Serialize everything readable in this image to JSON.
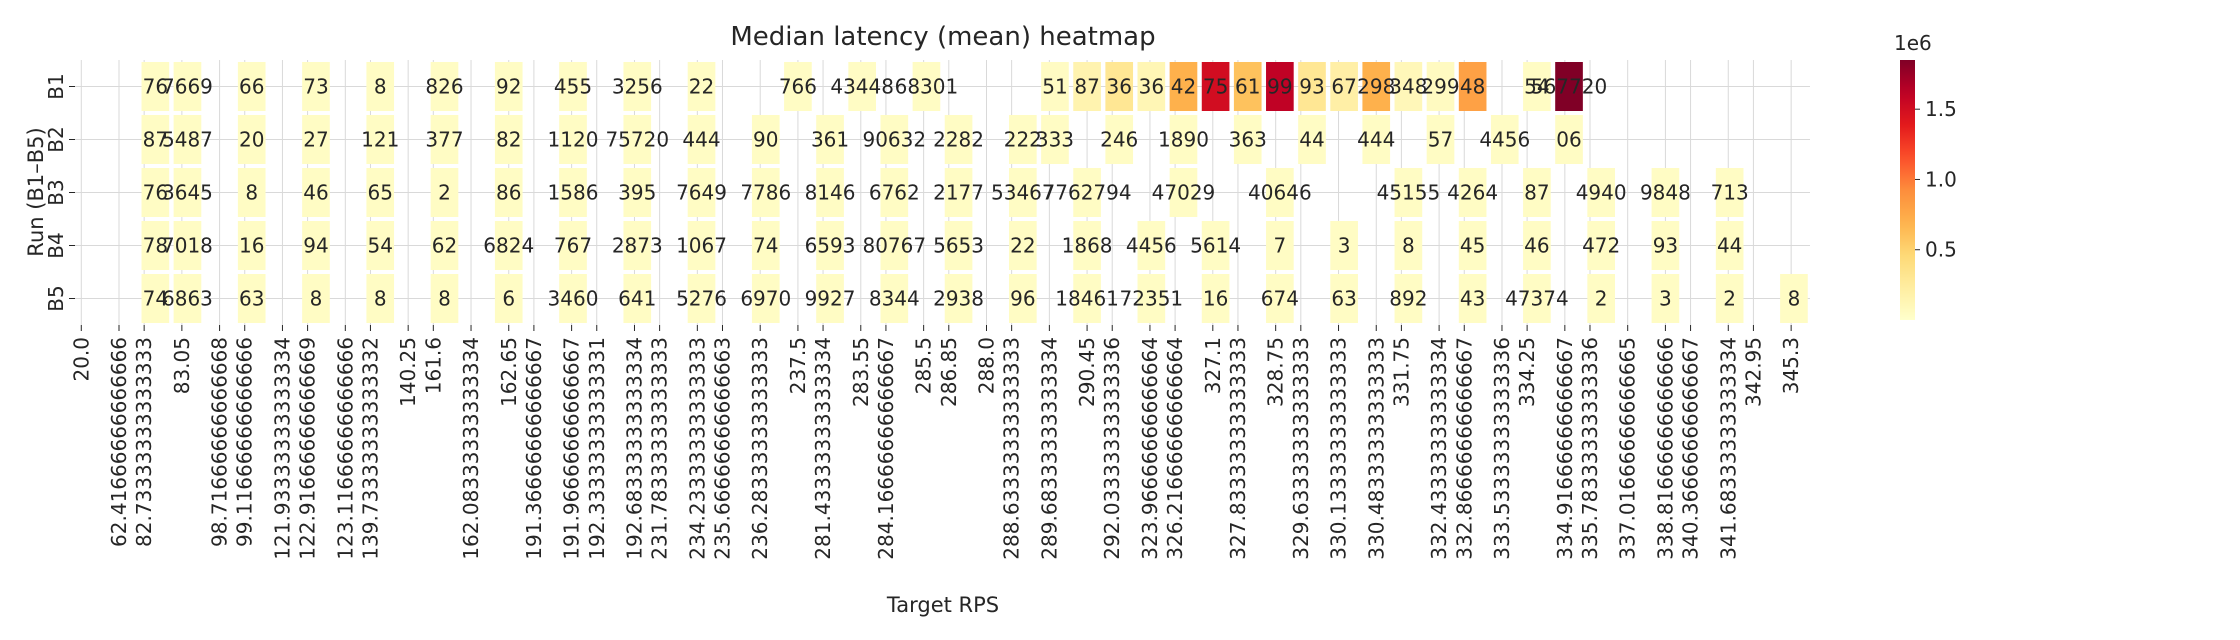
{
  "chart_data": {
    "type": "heatmap",
    "title": "Median latency (mean) heatmap",
    "xlabel": "Target RPS",
    "ylabel": "Run (B1–B5)",
    "rows": [
      "B1",
      "B2",
      "B3",
      "B4",
      "B5"
    ],
    "x_ticks": [
      "20.0",
      "62.41666666666666",
      "82.73333333333333",
      "83.05",
      "98.71666666666668",
      "99.11666666666666",
      "121.93333333333334",
      "122.91666666666669",
      "123.11666666666666",
      "139.73333333333332",
      "140.25",
      "161.6",
      "162.08333333333334",
      "162.65",
      "191.36666666666667",
      "191.96666666666667",
      "192.33333333333331",
      "192.68333333333334",
      "231.78333333333333",
      "234.23333333333333",
      "235.66666666666663",
      "236.28333333333333",
      "237.5",
      "281.43333333333334",
      "283.55",
      "284.16666666666667",
      "285.5",
      "286.85",
      "288.0",
      "288.63333333333333",
      "289.68333333333334",
      "290.45",
      "292.03333333333336",
      "323.96666666666664",
      "326.21666666666664",
      "327.1",
      "327.83333333333333",
      "328.75",
      "329.63333333333333",
      "330.13333333333333",
      "330.48333333333333",
      "331.75",
      "332.43333333333334",
      "332.86666666666667",
      "333.53333333333336",
      "334.25",
      "334.91666666666667",
      "335.78333333333336",
      "337.01666666666665",
      "338.81666666666666",
      "340.36666666666667",
      "341.68333333333334",
      "342.95",
      "345.3"
    ],
    "colorbar": {
      "colormap": "YlOrRd",
      "min": 0,
      "max": 1850000,
      "ticks": [
        0.5,
        1.0,
        1.5
      ],
      "tick_labels": [
        "0.5",
        "1.0",
        "1.5"
      ],
      "offset_label": "1e6"
    },
    "cells": {
      "B1": [
        {
          "col": 2,
          "value": 40000,
          "label": "76"
        },
        {
          "col": 3,
          "value": 40000,
          "label": "7669"
        },
        {
          "col": 5,
          "value": 40000,
          "label": "66"
        },
        {
          "col": 7,
          "value": 40000,
          "label": "73"
        },
        {
          "col": 9,
          "value": 40000,
          "label": "8"
        },
        {
          "col": 11,
          "value": 40000,
          "label": "826"
        },
        {
          "col": 13,
          "value": 40000,
          "label": "92"
        },
        {
          "col": 15,
          "value": 40000,
          "label": "455"
        },
        {
          "col": 17,
          "value": 40000,
          "label": "3256"
        },
        {
          "col": 19,
          "value": 40000,
          "label": "22"
        },
        {
          "col": 22,
          "value": 40000,
          "label": "766"
        },
        {
          "col": 24,
          "value": 40000,
          "label": "43448"
        },
        {
          "col": 26,
          "value": 40000,
          "label": "68301"
        },
        {
          "col": 30,
          "value": 45000,
          "label": "51"
        },
        {
          "col": 31,
          "value": 150000,
          "label": "87"
        },
        {
          "col": 32,
          "value": 300000,
          "label": "36"
        },
        {
          "col": 33,
          "value": 120000,
          "label": "36"
        },
        {
          "col": 34,
          "value": 700000,
          "label": "42"
        },
        {
          "col": 35,
          "value": 1500000,
          "label": "75"
        },
        {
          "col": 36,
          "value": 600000,
          "label": "61"
        },
        {
          "col": 37,
          "value": 1600000,
          "label": "99"
        },
        {
          "col": 38,
          "value": 300000,
          "label": "93"
        },
        {
          "col": 39,
          "value": 200000,
          "label": "67"
        },
        {
          "col": 40,
          "value": 700000,
          "label": "298"
        },
        {
          "col": 41,
          "value": 100000,
          "label": "348"
        },
        {
          "col": 42,
          "value": 60000,
          "label": "299"
        },
        {
          "col": 43,
          "value": 800000,
          "label": "48"
        },
        {
          "col": 45,
          "value": 40000,
          "label": "54"
        },
        {
          "col": 46,
          "value": 1850000,
          "label": "567720"
        }
      ],
      "B2": [
        {
          "col": 2,
          "value": 40000,
          "label": "87"
        },
        {
          "col": 3,
          "value": 40000,
          "label": "5487"
        },
        {
          "col": 5,
          "value": 40000,
          "label": "20"
        },
        {
          "col": 7,
          "value": 40000,
          "label": "27"
        },
        {
          "col": 9,
          "value": 40000,
          "label": "121"
        },
        {
          "col": 11,
          "value": 40000,
          "label": "377"
        },
        {
          "col": 13,
          "value": 40000,
          "label": "82"
        },
        {
          "col": 15,
          "value": 40000,
          "label": "1120"
        },
        {
          "col": 17,
          "value": 40000,
          "label": "75720"
        },
        {
          "col": 19,
          "value": 40000,
          "label": "444"
        },
        {
          "col": 21,
          "value": 40000,
          "label": "90"
        },
        {
          "col": 23,
          "value": 40000,
          "label": "361"
        },
        {
          "col": 25,
          "value": 40000,
          "label": "90632"
        },
        {
          "col": 27,
          "value": 40000,
          "label": "2282"
        },
        {
          "col": 29,
          "value": 40000,
          "label": "222"
        },
        {
          "col": 30,
          "value": 40000,
          "label": "333"
        },
        {
          "col": 32,
          "value": 40000,
          "label": "246"
        },
        {
          "col": 34,
          "value": 40000,
          "label": "1890"
        },
        {
          "col": 36,
          "value": 40000,
          "label": "363"
        },
        {
          "col": 38,
          "value": 40000,
          "label": "44"
        },
        {
          "col": 40,
          "value": 40000,
          "label": "444"
        },
        {
          "col": 42,
          "value": 40000,
          "label": "57"
        },
        {
          "col": 44,
          "value": 40000,
          "label": "4456"
        },
        {
          "col": 46,
          "value": 40000,
          "label": "06"
        }
      ],
      "B3": [
        {
          "col": 2,
          "value": 40000,
          "label": "76"
        },
        {
          "col": 3,
          "value": 40000,
          "label": "3645"
        },
        {
          "col": 5,
          "value": 40000,
          "label": "8"
        },
        {
          "col": 7,
          "value": 40000,
          "label": "46"
        },
        {
          "col": 9,
          "value": 40000,
          "label": "65"
        },
        {
          "col": 11,
          "value": 40000,
          "label": "2"
        },
        {
          "col": 13,
          "value": 40000,
          "label": "86"
        },
        {
          "col": 15,
          "value": 40000,
          "label": "1586"
        },
        {
          "col": 17,
          "value": 40000,
          "label": "395"
        },
        {
          "col": 19,
          "value": 40000,
          "label": "7649"
        },
        {
          "col": 21,
          "value": 40000,
          "label": "7786"
        },
        {
          "col": 23,
          "value": 40000,
          "label": "8146"
        },
        {
          "col": 25,
          "value": 40000,
          "label": "6762"
        },
        {
          "col": 27,
          "value": 40000,
          "label": "2177"
        },
        {
          "col": 29,
          "value": 40000,
          "label": "53467"
        },
        {
          "col": 31,
          "value": 40000,
          "label": "7762794"
        },
        {
          "col": 34,
          "value": 40000,
          "label": "47029"
        },
        {
          "col": 37,
          "value": 40000,
          "label": "40646"
        },
        {
          "col": 41,
          "value": 40000,
          "label": "45155"
        },
        {
          "col": 43,
          "value": 40000,
          "label": "4264"
        },
        {
          "col": 45,
          "value": 40000,
          "label": "87"
        },
        {
          "col": 47,
          "value": 40000,
          "label": "4940"
        },
        {
          "col": 49,
          "value": 40000,
          "label": "9848"
        },
        {
          "col": 51,
          "value": 40000,
          "label": "713"
        }
      ],
      "B4": [
        {
          "col": 2,
          "value": 40000,
          "label": "78"
        },
        {
          "col": 3,
          "value": 40000,
          "label": "7018"
        },
        {
          "col": 5,
          "value": 40000,
          "label": "16"
        },
        {
          "col": 7,
          "value": 40000,
          "label": "94"
        },
        {
          "col": 9,
          "value": 40000,
          "label": "54"
        },
        {
          "col": 11,
          "value": 40000,
          "label": "62"
        },
        {
          "col": 13,
          "value": 40000,
          "label": "6824"
        },
        {
          "col": 15,
          "value": 40000,
          "label": "767"
        },
        {
          "col": 17,
          "value": 40000,
          "label": "2873"
        },
        {
          "col": 19,
          "value": 40000,
          "label": "1067"
        },
        {
          "col": 21,
          "value": 40000,
          "label": "74"
        },
        {
          "col": 23,
          "value": 40000,
          "label": "6593"
        },
        {
          "col": 25,
          "value": 40000,
          "label": "80767"
        },
        {
          "col": 27,
          "value": 40000,
          "label": "5653"
        },
        {
          "col": 29,
          "value": 40000,
          "label": "22"
        },
        {
          "col": 31,
          "value": 40000,
          "label": "1868"
        },
        {
          "col": 33,
          "value": 40000,
          "label": "4456"
        },
        {
          "col": 35,
          "value": 40000,
          "label": "5614"
        },
        {
          "col": 37,
          "value": 40000,
          "label": "7"
        },
        {
          "col": 39,
          "value": 40000,
          "label": "3"
        },
        {
          "col": 41,
          "value": 40000,
          "label": "8"
        },
        {
          "col": 43,
          "value": 40000,
          "label": "45"
        },
        {
          "col": 45,
          "value": 40000,
          "label": "46"
        },
        {
          "col": 47,
          "value": 40000,
          "label": "472"
        },
        {
          "col": 49,
          "value": 40000,
          "label": "93"
        },
        {
          "col": 51,
          "value": 40000,
          "label": "44"
        }
      ],
      "B5": [
        {
          "col": 2,
          "value": 40000,
          "label": "74"
        },
        {
          "col": 3,
          "value": 40000,
          "label": "6863"
        },
        {
          "col": 5,
          "value": 40000,
          "label": "63"
        },
        {
          "col": 7,
          "value": 40000,
          "label": "8"
        },
        {
          "col": 9,
          "value": 40000,
          "label": "8"
        },
        {
          "col": 11,
          "value": 40000,
          "label": "8"
        },
        {
          "col": 13,
          "value": 40000,
          "label": "6"
        },
        {
          "col": 15,
          "value": 40000,
          "label": "3460"
        },
        {
          "col": 17,
          "value": 40000,
          "label": "641"
        },
        {
          "col": 19,
          "value": 40000,
          "label": "5276"
        },
        {
          "col": 21,
          "value": 40000,
          "label": "6970"
        },
        {
          "col": 23,
          "value": 40000,
          "label": "9927"
        },
        {
          "col": 25,
          "value": 40000,
          "label": "8344"
        },
        {
          "col": 27,
          "value": 40000,
          "label": "2938"
        },
        {
          "col": 29,
          "value": 40000,
          "label": "96"
        },
        {
          "col": 31,
          "value": 40000,
          "label": "18461"
        },
        {
          "col": 33,
          "value": 40000,
          "label": "72351"
        },
        {
          "col": 35,
          "value": 40000,
          "label": "16"
        },
        {
          "col": 37,
          "value": 40000,
          "label": "674"
        },
        {
          "col": 39,
          "value": 40000,
          "label": "63"
        },
        {
          "col": 41,
          "value": 40000,
          "label": "892"
        },
        {
          "col": 43,
          "value": 40000,
          "label": "43"
        },
        {
          "col": 45,
          "value": 40000,
          "label": "47374"
        },
        {
          "col": 47,
          "value": 40000,
          "label": "2"
        },
        {
          "col": 49,
          "value": 40000,
          "label": "3"
        },
        {
          "col": 51,
          "value": 40000,
          "label": "2"
        },
        {
          "col": 53,
          "value": 40000,
          "label": "8"
        }
      ]
    }
  }
}
